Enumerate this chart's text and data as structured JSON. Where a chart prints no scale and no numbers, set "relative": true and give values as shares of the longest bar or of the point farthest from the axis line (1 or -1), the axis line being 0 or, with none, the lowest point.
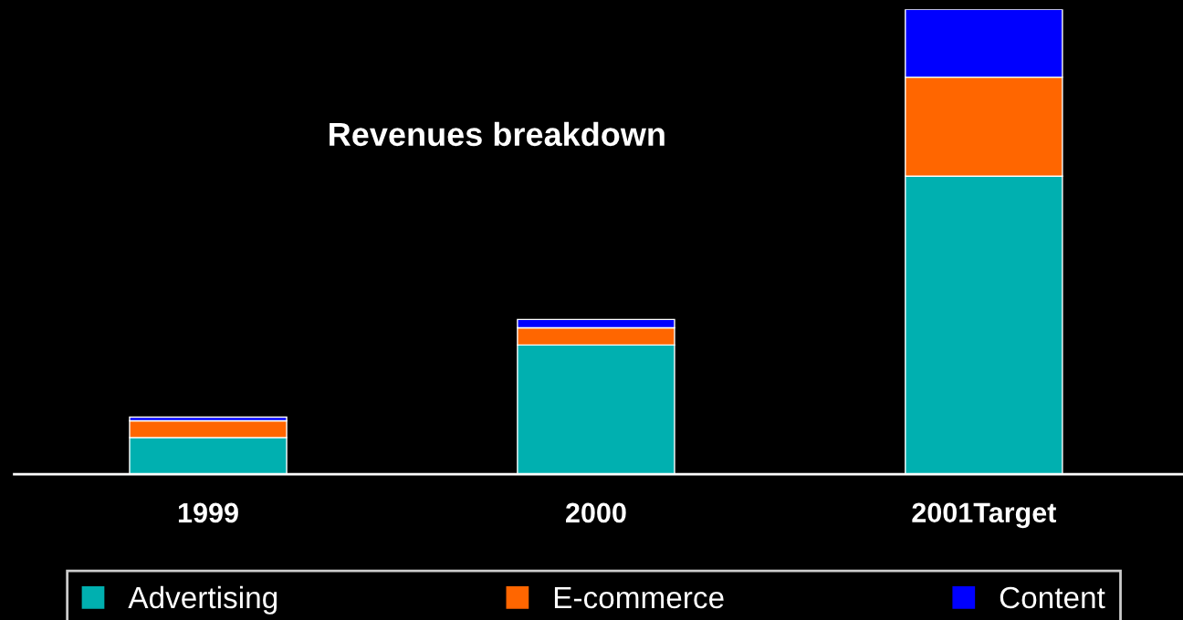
{
  "chart_data": {
    "type": "bar",
    "title": "Revenues breakdown",
    "relative": true,
    "stacked": true,
    "legend": "bottom",
    "grid": false,
    "categories": [
      "1999",
      "2000",
      "2001Target"
    ],
    "series": [
      {
        "name": "Advertising",
        "color": "#00b0b0",
        "values": [
          0.079,
          0.278,
          0.641
        ]
      },
      {
        "name": "E-commerce",
        "color": "#ff6600",
        "values": [
          0.036,
          0.037,
          0.213
        ]
      },
      {
        "name": "Content",
        "color": "#0000ff",
        "values": [
          0.008,
          0.018,
          0.146
        ]
      }
    ]
  }
}
